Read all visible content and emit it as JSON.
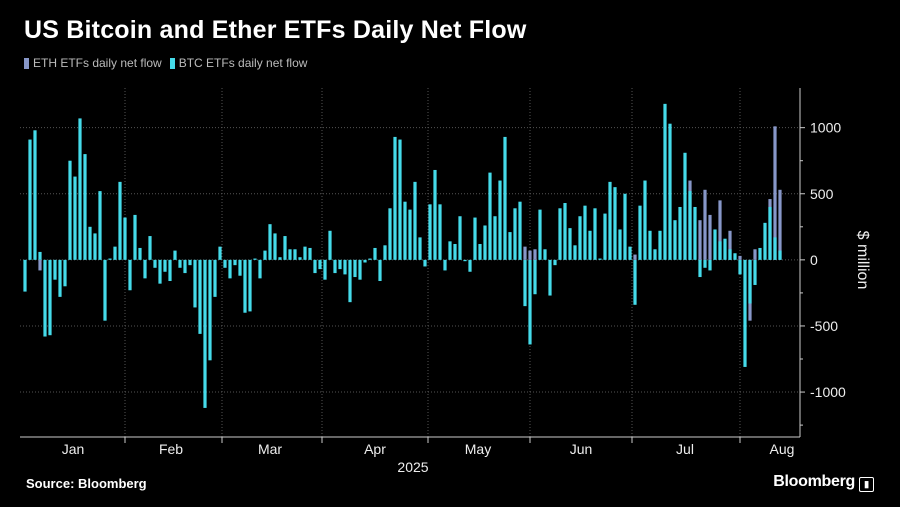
{
  "chart_data": {
    "type": "bar",
    "title": "US Bitcoin and Ether ETFs Daily Net Flow",
    "ylabel": "$ million",
    "xlabel": "2025",
    "ylim": [
      -1340,
      1300
    ],
    "yticks": [
      1000,
      500,
      0,
      -500,
      -1000
    ],
    "ytick_labels": [
      "1000",
      "500",
      "0",
      "-500",
      "-1000"
    ],
    "grid": true,
    "legend_position": "top-left",
    "months": [
      "Jan",
      "Feb",
      "Mar",
      "Apr",
      "May",
      "Jun",
      "Jul",
      "Aug"
    ],
    "year_label": "2025",
    "series": [
      {
        "name": "ETH ETFs daily net flow",
        "color": "#8797c8",
        "values_sparse": {
          "3": -80,
          "100": 100,
          "101": 70,
          "102": 80,
          "122": 40,
          "133": 600,
          "135": 300,
          "136": 530,
          "137": 340,
          "139": 450,
          "141": 220,
          "143": 30,
          "145": -460,
          "146": 80,
          "149": 460,
          "150": 1010,
          "151": 530
        }
      },
      {
        "name": "BTC ETFs daily net flow",
        "color": "#45dbea",
        "values": [
          -240,
          910,
          980,
          60,
          -580,
          -570,
          -150,
          -280,
          -200,
          750,
          630,
          1070,
          800,
          250,
          200,
          520,
          -460,
          10,
          100,
          590,
          320,
          -230,
          340,
          90,
          -140,
          180,
          -60,
          -180,
          -90,
          -160,
          70,
          -60,
          -100,
          -40,
          -360,
          -560,
          -1120,
          -760,
          -280,
          100,
          -60,
          -140,
          -40,
          -120,
          -400,
          -390,
          10,
          -140,
          70,
          270,
          200,
          20,
          180,
          80,
          80,
          20,
          100,
          90,
          -100,
          -70,
          -150,
          220,
          -100,
          -70,
          -110,
          -320,
          -130,
          -150,
          -20,
          10,
          90,
          -160,
          110,
          390,
          930,
          910,
          440,
          380,
          590,
          170,
          -50,
          420,
          680,
          420,
          -80,
          140,
          120,
          330,
          -10,
          -90,
          320,
          120,
          260,
          660,
          330,
          600,
          930,
          210,
          390,
          440,
          -350,
          -640,
          -260,
          380,
          80,
          -270,
          -40,
          390,
          430,
          240,
          110,
          330,
          410,
          220,
          390,
          10,
          350,
          590,
          550,
          230,
          500,
          100,
          -340,
          410,
          600,
          220,
          80,
          220,
          1180,
          1030,
          300,
          400,
          810,
          520,
          400,
          -130,
          -60,
          -80,
          230,
          140,
          160,
          80,
          50,
          -110,
          -810,
          -330,
          -190,
          90,
          280,
          400,
          170,
          70
        ]
      }
    ]
  },
  "source": "Source: Bloomberg",
  "brand": "Bloomberg"
}
